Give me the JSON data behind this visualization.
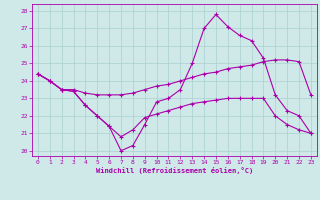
{
  "xlabel": "Windchill (Refroidissement éolien,°C)",
  "xlim": [
    -0.5,
    23.5
  ],
  "ylim": [
    19.7,
    28.4
  ],
  "yticks": [
    20,
    21,
    22,
    23,
    24,
    25,
    26,
    27,
    28
  ],
  "xticks": [
    0,
    1,
    2,
    3,
    4,
    5,
    6,
    7,
    8,
    9,
    10,
    11,
    12,
    13,
    14,
    15,
    16,
    17,
    18,
    19,
    20,
    21,
    22,
    23
  ],
  "bg_color": "#cfe8e8",
  "grid_color": "#aad0d0",
  "line_color": "#aa00aa",
  "lines": [
    {
      "x": [
        0,
        1,
        2,
        3,
        4,
        5,
        6,
        7,
        8,
        9,
        10,
        11,
        12,
        13,
        14,
        15,
        16,
        17,
        18,
        19,
        20,
        21,
        22,
        23
      ],
      "y": [
        24.4,
        24.0,
        23.5,
        23.4,
        22.6,
        22.0,
        21.4,
        20.0,
        20.3,
        21.5,
        22.8,
        23.0,
        23.5,
        25.0,
        27.0,
        27.8,
        27.1,
        26.6,
        26.3,
        25.3,
        23.2,
        22.3,
        22.0,
        21.0
      ]
    },
    {
      "x": [
        0,
        1,
        2,
        3,
        4,
        5,
        6,
        7,
        8,
        9,
        10,
        11,
        12,
        13,
        14,
        15,
        16,
        17,
        18,
        19,
        20,
        21,
        22,
        23
      ],
      "y": [
        24.4,
        24.0,
        23.5,
        23.5,
        23.3,
        23.2,
        23.2,
        23.2,
        23.3,
        23.5,
        23.7,
        23.8,
        24.0,
        24.2,
        24.4,
        24.5,
        24.7,
        24.8,
        24.9,
        25.1,
        25.2,
        25.2,
        25.1,
        23.2
      ]
    },
    {
      "x": [
        0,
        1,
        2,
        3,
        4,
        5,
        6,
        7,
        8,
        9,
        10,
        11,
        12,
        13,
        14,
        15,
        16,
        17,
        18,
        19,
        20,
        21,
        22,
        23
      ],
      "y": [
        24.4,
        24.0,
        23.5,
        23.4,
        22.6,
        22.0,
        21.4,
        20.8,
        21.2,
        21.9,
        22.1,
        22.3,
        22.5,
        22.7,
        22.8,
        22.9,
        23.0,
        23.0,
        23.0,
        23.0,
        22.0,
        21.5,
        21.2,
        21.0
      ]
    }
  ]
}
